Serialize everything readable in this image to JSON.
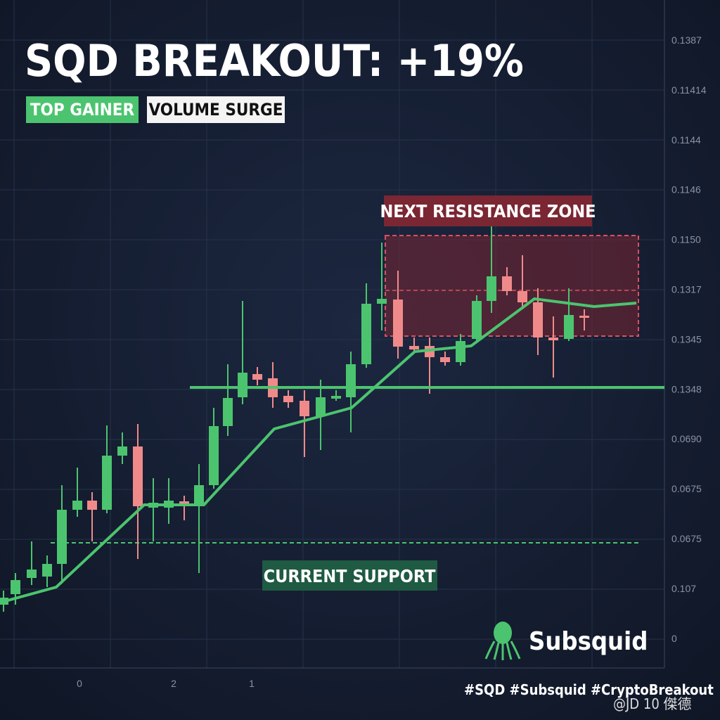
{
  "header": {
    "title": "SQD BREAKOUT: +19%",
    "tags": [
      "TOP GAINER",
      "VOLUME SURGE"
    ]
  },
  "axis": {
    "y_labels": [
      "0.1387",
      "0.11414",
      "0.1144",
      "0.1146",
      "0.1150",
      "0.1317",
      "0.1345",
      "0.1348",
      "0.0690",
      "0.0675",
      "0.0675",
      "0.107",
      "0"
    ],
    "x_labels": [
      "0",
      "2",
      "1"
    ]
  },
  "annotations": {
    "resistance": "NEXT RESISTANCE ZONE",
    "support": "CURRENT SUPPORT"
  },
  "brand": {
    "name": "Subsquid",
    "hashtags": "#SQD #Subsquid #CryptoBreakout",
    "watermark": "@JD 10 傑德"
  }
}
